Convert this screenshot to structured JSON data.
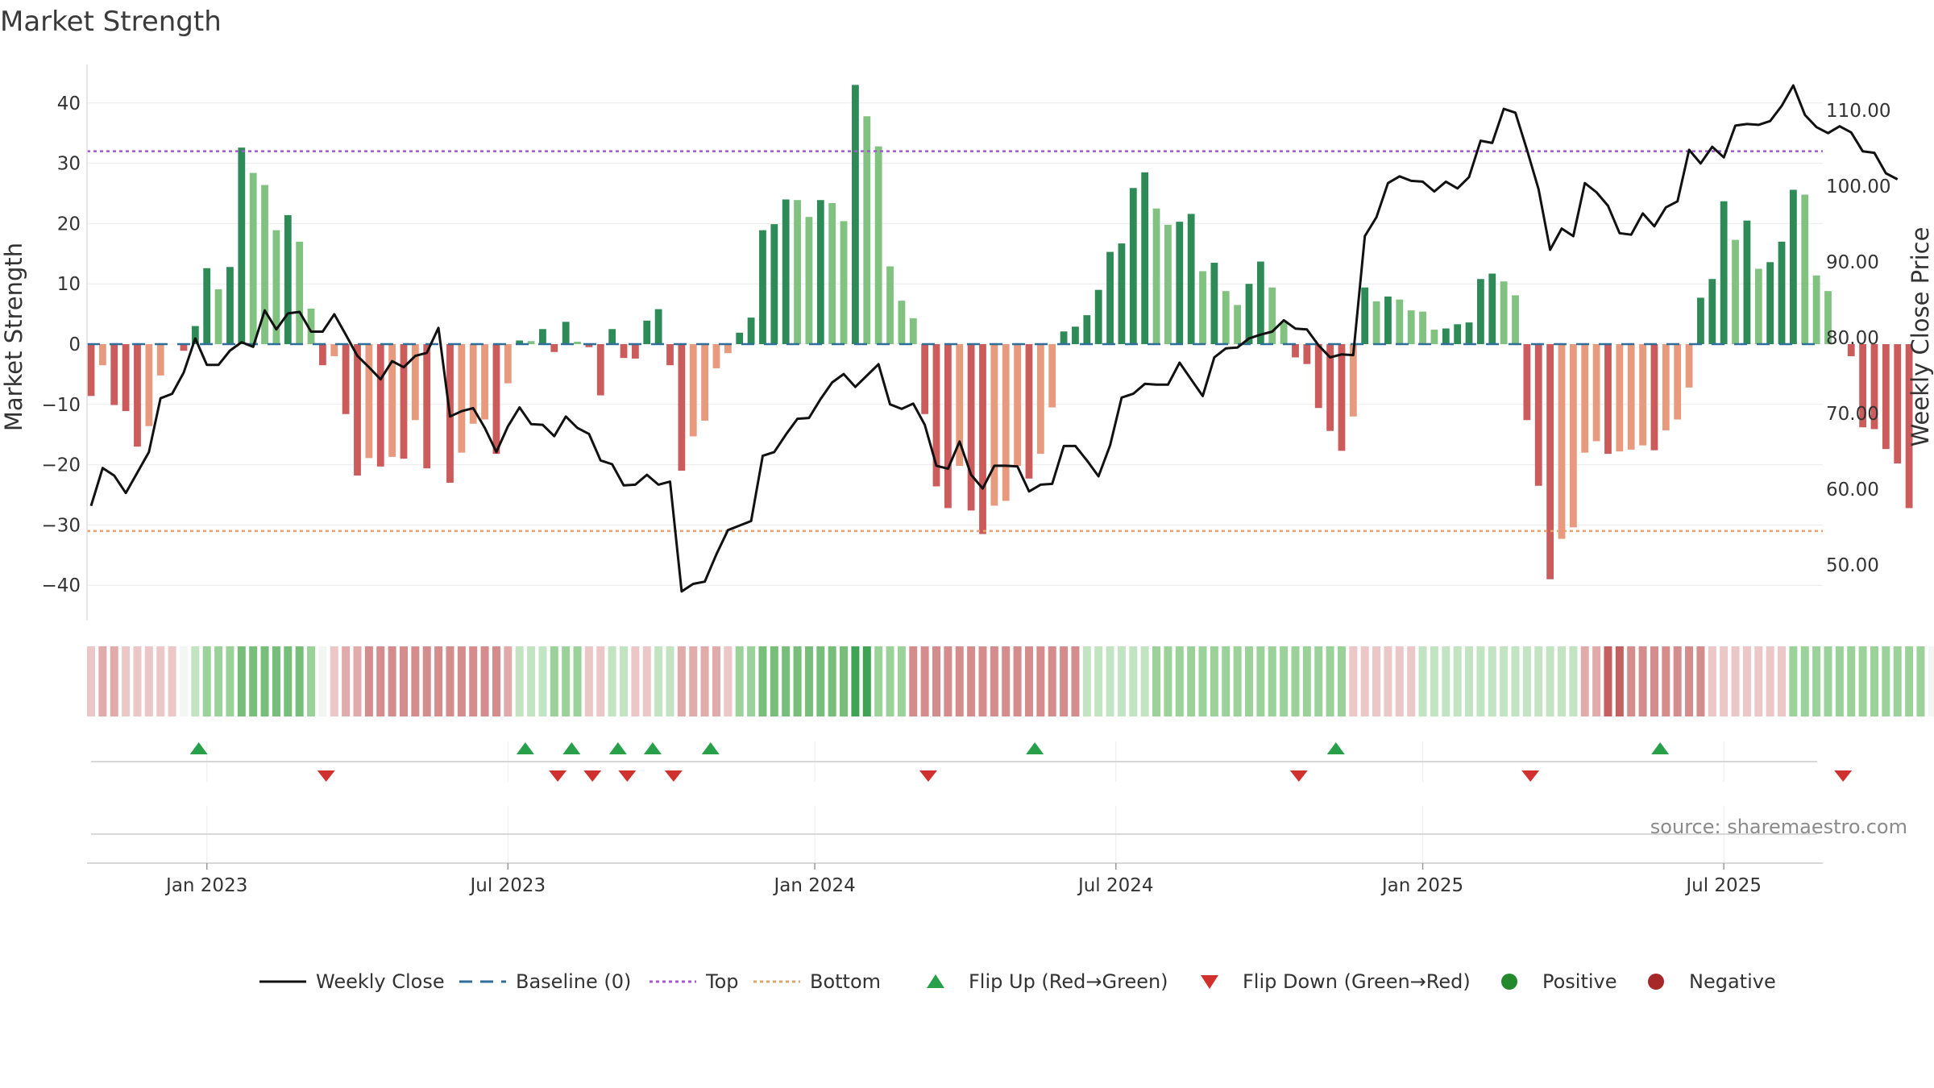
{
  "chart_data": {
    "type": "bar",
    "title": "Market Strength",
    "ylabel": "Market Strength",
    "y2label": "Weekly Close Price",
    "ylim": [
      -47,
      46
    ],
    "y2lim": [
      44.5,
      115.5
    ],
    "yticks": [
      40,
      30,
      20,
      10,
      0,
      -10,
      -20,
      -30,
      -40
    ],
    "y2ticks": [
      "110.00",
      "100.00",
      "90.00",
      "80.00",
      "70.00",
      "60.00",
      "50.00"
    ],
    "y2tick_values": [
      110,
      100,
      90,
      80,
      70,
      60,
      50
    ],
    "top_level": 32,
    "bottom_level": -31,
    "x_start": "2022-10-24",
    "x_end": "2025-09-29",
    "xticks": [
      {
        "label": "Jan 2023",
        "week": 10
      },
      {
        "label": "Jul 2023",
        "week": 36
      },
      {
        "label": "Jan 2024",
        "week": 62.5
      },
      {
        "label": "Jul 2024",
        "week": 88.5
      },
      {
        "label": "Jan 2025",
        "week": 115
      },
      {
        "label": "Jul 2025",
        "week": 141
      }
    ],
    "strength": [
      -8.6,
      -3.5,
      -10.1,
      -11.1,
      -17.0,
      -13.6,
      -5.2,
      0.0,
      -1.1,
      3.0,
      12.6,
      9.1,
      12.8,
      32.6,
      28.4,
      26.4,
      18.9,
      21.4,
      17.0,
      5.9,
      -3.5,
      -2.0,
      -11.6,
      -21.8,
      -18.9,
      -20.3,
      -18.7,
      -19.0,
      -12.6,
      -20.6,
      0.0,
      -23.0,
      -18.0,
      -13.2,
      -12.5,
      -18.2,
      -6.5,
      0.6,
      0.5,
      2.5,
      -1.3,
      3.7,
      0.4,
      -0.5,
      -8.5,
      2.5,
      -2.3,
      -2.4,
      3.9,
      5.8,
      -3.5,
      -21.0,
      -15.3,
      -12.7,
      -4.0,
      -1.5,
      1.9,
      4.4,
      18.9,
      19.9,
      24.0,
      23.9,
      21.1,
      23.9,
      23.4,
      20.4,
      43.0,
      37.8,
      32.8,
      12.9,
      7.2,
      4.3,
      -11.6,
      -23.6,
      -27.2,
      -20.2,
      -27.6,
      -31.5,
      -26.8,
      -26.0,
      -20.2,
      -22.3,
      -18.2,
      -10.5,
      2.1,
      2.9,
      4.8,
      9.0,
      15.3,
      16.7,
      25.9,
      28.5,
      22.5,
      19.8,
      20.3,
      21.6,
      12.1,
      13.5,
      8.8,
      6.5,
      10.0,
      13.7,
      9.4,
      3.6,
      -2.2,
      -3.3,
      -10.6,
      -14.4,
      -17.7,
      -12.0,
      9.4,
      7.1,
      7.9,
      7.4,
      5.6,
      5.4,
      2.4,
      2.6,
      3.3,
      3.6,
      10.8,
      11.7,
      10.4,
      8.1,
      -12.6,
      -23.5,
      -39.0,
      -32.3,
      -30.4,
      -18.0,
      -16.1,
      -18.2,
      -17.8,
      -17.5,
      -16.8,
      -17.6,
      -14.3,
      -12.5,
      -7.2,
      7.7,
      10.8,
      23.7,
      17.3,
      20.5,
      12.5,
      13.6,
      17.0,
      25.6,
      24.8,
      11.4,
      8.8,
      0.0,
      -2.0,
      -13.8,
      -14.1,
      -17.4,
      -19.8,
      -27.2
    ],
    "close": [
      57.8,
      62.8,
      61.8,
      59.5,
      62.2,
      64.9,
      72.0,
      72.6,
      75.4,
      79.9,
      76.4,
      76.4,
      78.3,
      79.4,
      78.8,
      83.6,
      81.1,
      83.2,
      83.4,
      80.8,
      80.8,
      83.1,
      80.4,
      77.6,
      76.1,
      74.5,
      76.9,
      76.1,
      77.6,
      78.0,
      81.3,
      69.6,
      70.3,
      70.7,
      68.1,
      64.9,
      68.3,
      70.8,
      68.6,
      68.5,
      67.0,
      69.6,
      68.1,
      67.3,
      63.8,
      63.3,
      60.5,
      60.6,
      61.9,
      60.6,
      61.0,
      46.5,
      47.5,
      47.8,
      51.4,
      54.6,
      55.2,
      55.8,
      64.4,
      64.9,
      67.2,
      69.3,
      69.4,
      71.9,
      74.1,
      75.2,
      73.5,
      75.0,
      76.5,
      71.2,
      70.6,
      71.3,
      68.5,
      63.1,
      62.7,
      66.3,
      61.9,
      60.1,
      63.1,
      63.1,
      63.0,
      59.7,
      60.6,
      60.7,
      65.7,
      65.7,
      63.8,
      61.7,
      65.8,
      72.1,
      72.6,
      73.9,
      73.8,
      73.8,
      76.7,
      74.5,
      72.3,
      77.4,
      78.6,
      78.7,
      79.9,
      80.4,
      80.8,
      82.3,
      81.2,
      81.1,
      79.0,
      77.4,
      77.8,
      77.7,
      93.4,
      95.9,
      100.4,
      101.3,
      100.7,
      100.6,
      99.3,
      100.6,
      99.7,
      101.2,
      106.0,
      105.7,
      110.2,
      109.7,
      104.8,
      99.6,
      91.6,
      94.4,
      93.4,
      100.4,
      99.2,
      97.4,
      93.8,
      93.6,
      96.4,
      94.7,
      97.2,
      98.0,
      104.8,
      103.0,
      105.2,
      103.8,
      108.0,
      108.2,
      108.1,
      108.6,
      110.6,
      113.3,
      109.4,
      107.8,
      107.0,
      107.9,
      107.1,
      104.6,
      104.4,
      101.7,
      100.9
    ],
    "regime_strip": [
      1,
      2,
      2,
      1,
      1,
      1,
      1,
      1,
      0,
      -1,
      -2,
      -2,
      -2,
      -3,
      -3,
      -3,
      -3,
      -3,
      -3,
      -2,
      0,
      1,
      2,
      2,
      3,
      3,
      3,
      3,
      3,
      3,
      3,
      3,
      3,
      3,
      3,
      3,
      2,
      -1,
      -1,
      -1,
      -2,
      -2,
      -2,
      1,
      1,
      -1,
      -1,
      1,
      1,
      -1,
      -1,
      2,
      2,
      2,
      2,
      1,
      -2,
      -2,
      -3,
      -3,
      -3,
      -3,
      -3,
      -3,
      -3,
      -3,
      -4,
      -4,
      -2,
      -2,
      -2,
      3,
      3,
      3,
      3,
      3,
      3,
      3,
      3,
      3,
      3,
      3,
      3,
      3,
      3,
      3,
      -1,
      -1,
      -1,
      -1,
      -1,
      -1,
      -2,
      -2,
      -2,
      -2,
      -2,
      -2,
      -2,
      -2,
      -2,
      -2,
      -2,
      -2,
      -2,
      -2,
      -2,
      -2,
      -2,
      1,
      1,
      1,
      1,
      1,
      1,
      -1,
      -1,
      -1,
      -1,
      -1,
      -1,
      -1,
      -1,
      -1,
      -1,
      -1,
      -1,
      -1,
      -1,
      2,
      2,
      4,
      4,
      3,
      3,
      3,
      3,
      3,
      3,
      3,
      1,
      1,
      1,
      1,
      1,
      1,
      1,
      -2,
      -2,
      -2,
      -2,
      -2,
      -2,
      -2,
      -2,
      -2,
      -2,
      -2,
      -2,
      0,
      1,
      1,
      1,
      1,
      1,
      2,
      2
    ],
    "flip_up_weeks": [
      9.3,
      37.5,
      41.5,
      45.5,
      48.5,
      53.5,
      81.5,
      107.5,
      135.5
    ],
    "flip_down_weeks": [
      20.3,
      40.3,
      43.3,
      46.3,
      50.3,
      72.3,
      104.3,
      124.3,
      151.3
    ],
    "legend": [
      {
        "label": "Weekly Close",
        "kind": "line",
        "color": "#111111"
      },
      {
        "label": "Baseline (0)",
        "kind": "dash",
        "color": "#2f6e98"
      },
      {
        "label": "Top",
        "kind": "dot",
        "color": "#a25ad0"
      },
      {
        "label": "Bottom",
        "kind": "dot",
        "color": "#e8a06c"
      },
      {
        "label": "Flip Up (Red→Green)",
        "kind": "up",
        "color": "#28a04a"
      },
      {
        "label": "Flip Down (Green→Red)",
        "kind": "down",
        "color": "#d0302e"
      },
      {
        "label": "Positive",
        "kind": "circle",
        "color": "#24892d"
      },
      {
        "label": "Negative",
        "kind": "circle",
        "color": "#a62828"
      }
    ],
    "source": "source: sharemaestro.com",
    "colors": {
      "pos_strong": "#2e8b57",
      "pos_light": "#82c281",
      "neg_strong": "#cc5b5b",
      "neg_light": "#e79a7d",
      "top_line": "#a25ad0",
      "bottom_line": "#e8a06c",
      "baseline": "#2f6e98",
      "close_line": "#111111"
    }
  }
}
